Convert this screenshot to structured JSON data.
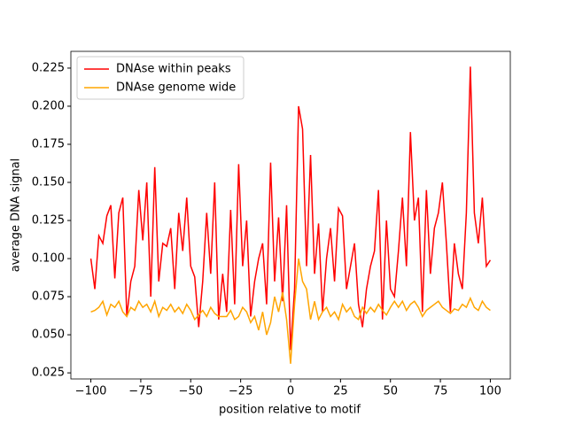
{
  "chart_data": {
    "type": "line",
    "xlabel": "position relative to motif",
    "ylabel": "average DNA signal",
    "x": [
      -100,
      -98,
      -96,
      -94,
      -92,
      -90,
      -88,
      -86,
      -84,
      -82,
      -80,
      -78,
      -76,
      -74,
      -72,
      -70,
      -68,
      -66,
      -64,
      -62,
      -60,
      -58,
      -56,
      -54,
      -52,
      -50,
      -48,
      -46,
      -44,
      -42,
      -40,
      -38,
      -36,
      -34,
      -32,
      -30,
      -28,
      -26,
      -24,
      -22,
      -20,
      -18,
      -16,
      -14,
      -12,
      -10,
      -8,
      -6,
      -4,
      -2,
      0,
      2,
      4,
      6,
      8,
      10,
      12,
      14,
      16,
      18,
      20,
      22,
      24,
      26,
      28,
      30,
      32,
      34,
      36,
      38,
      40,
      42,
      44,
      46,
      48,
      50,
      52,
      54,
      56,
      58,
      60,
      62,
      64,
      66,
      68,
      70,
      72,
      74,
      76,
      78,
      80,
      82,
      84,
      86,
      88,
      90,
      92,
      94,
      96,
      98,
      100
    ],
    "series": [
      {
        "name": "DNAse within peaks",
        "color": "#ff0000",
        "values": [
          0.1,
          0.08,
          0.115,
          0.11,
          0.128,
          0.135,
          0.087,
          0.13,
          0.14,
          0.062,
          0.085,
          0.095,
          0.145,
          0.112,
          0.15,
          0.075,
          0.16,
          0.085,
          0.11,
          0.108,
          0.12,
          0.08,
          0.13,
          0.105,
          0.14,
          0.095,
          0.088,
          0.055,
          0.085,
          0.13,
          0.09,
          0.15,
          0.06,
          0.09,
          0.065,
          0.132,
          0.07,
          0.162,
          0.095,
          0.125,
          0.062,
          0.085,
          0.1,
          0.11,
          0.07,
          0.163,
          0.085,
          0.127,
          0.072,
          0.135,
          0.04,
          0.08,
          0.2,
          0.185,
          0.095,
          0.168,
          0.09,
          0.123,
          0.065,
          0.1,
          0.12,
          0.085,
          0.133,
          0.128,
          0.08,
          0.095,
          0.11,
          0.07,
          0.055,
          0.08,
          0.095,
          0.105,
          0.145,
          0.06,
          0.125,
          0.08,
          0.075,
          0.105,
          0.14,
          0.095,
          0.183,
          0.125,
          0.14,
          0.065,
          0.145,
          0.09,
          0.12,
          0.13,
          0.15,
          0.11,
          0.065,
          0.11,
          0.09,
          0.08,
          0.13,
          0.226,
          0.13,
          0.11,
          0.14,
          0.095,
          0.099
        ]
      },
      {
        "name": "DNAse genome wide",
        "color": "#ffa500",
        "values": [
          0.065,
          0.066,
          0.068,
          0.072,
          0.063,
          0.07,
          0.068,
          0.072,
          0.065,
          0.062,
          0.068,
          0.066,
          0.072,
          0.068,
          0.07,
          0.065,
          0.072,
          0.062,
          0.068,
          0.066,
          0.07,
          0.065,
          0.068,
          0.064,
          0.07,
          0.066,
          0.06,
          0.063,
          0.066,
          0.062,
          0.068,
          0.064,
          0.062,
          0.062,
          0.062,
          0.066,
          0.06,
          0.062,
          0.068,
          0.065,
          0.058,
          0.062,
          0.053,
          0.065,
          0.05,
          0.058,
          0.075,
          0.065,
          0.078,
          0.06,
          0.031,
          0.07,
          0.1,
          0.085,
          0.08,
          0.06,
          0.072,
          0.06,
          0.065,
          0.068,
          0.062,
          0.065,
          0.06,
          0.07,
          0.065,
          0.068,
          0.062,
          0.06,
          0.068,
          0.064,
          0.068,
          0.065,
          0.07,
          0.066,
          0.063,
          0.068,
          0.072,
          0.068,
          0.072,
          0.066,
          0.07,
          0.072,
          0.068,
          0.062,
          0.066,
          0.068,
          0.07,
          0.072,
          0.068,
          0.066,
          0.064,
          0.067,
          0.066,
          0.07,
          0.068,
          0.074,
          0.068,
          0.066,
          0.072,
          0.068,
          0.066
        ]
      }
    ],
    "xlim": [
      -110,
      110
    ],
    "ylim": [
      0.021,
      0.236
    ],
    "xticks": [
      {
        "value": -100,
        "label": "−100"
      },
      {
        "value": -75,
        "label": "−75"
      },
      {
        "value": -50,
        "label": "−50"
      },
      {
        "value": -25,
        "label": "−25"
      },
      0,
      25,
      50,
      75,
      100
    ],
    "yticks": [
      0.025,
      {
        "value": 0.05,
        "label": "0.050"
      },
      0.075,
      {
        "value": 0.1,
        "label": "0.100"
      },
      0.125,
      {
        "value": 0.15,
        "label": "0.150"
      },
      0.175,
      {
        "value": 0.2,
        "label": "0.200"
      },
      0.225
    ],
    "legend": "upper left"
  }
}
